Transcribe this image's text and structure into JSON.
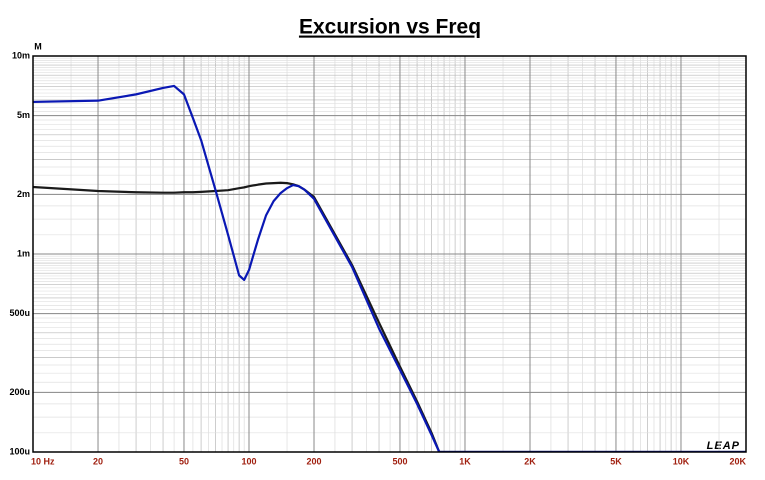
{
  "chart_data": {
    "type": "line",
    "title": "Excursion vs Freq",
    "y_unit": "M",
    "watermark": "LEAP",
    "xscale": "log",
    "yscale": "log",
    "grid": true,
    "xlim": [
      10,
      20000
    ],
    "ylim": [
      0.0001,
      0.01
    ],
    "xticks": [
      {
        "value": 10,
        "label": "10 Hz"
      },
      20,
      50,
      100,
      200,
      500,
      {
        "value": 1000,
        "label": "1K"
      },
      {
        "value": 2000,
        "label": "2K"
      },
      {
        "value": 5000,
        "label": "5K"
      },
      {
        "value": 10000,
        "label": "10K"
      },
      {
        "value": 20000,
        "label": "20K"
      }
    ],
    "yticks": [
      {
        "value": 0.0001,
        "label": "100u"
      },
      {
        "value": 0.0002,
        "label": "200u"
      },
      {
        "value": 0.0005,
        "label": "500u"
      },
      {
        "value": 0.001,
        "label": "1m"
      },
      {
        "value": 0.002,
        "label": "2m"
      },
      {
        "value": 0.005,
        "label": "5m"
      },
      {
        "value": 0.01,
        "label": "10m"
      }
    ],
    "x": [
      10,
      20,
      30,
      40,
      45,
      50,
      55,
      60,
      70,
      80,
      90,
      95,
      100,
      110,
      120,
      130,
      140,
      150,
      160,
      170,
      180,
      200,
      300,
      400,
      500,
      600,
      700,
      760,
      1000,
      20000
    ],
    "series": [
      {
        "color": "#1a1a1a",
        "values": [
          0.00218,
          0.00208,
          0.00205,
          0.00204,
          0.00204,
          0.00205,
          0.00205,
          0.00206,
          0.00208,
          0.0021,
          0.00215,
          0.00217,
          0.0022,
          0.00224,
          0.00227,
          0.00228,
          0.00229,
          0.00228,
          0.00225,
          0.0022,
          0.00212,
          0.00194,
          0.00088,
          0.00045,
          0.00027,
          0.00018,
          0.000125,
          0.0001,
          0.0001,
          0.0001
        ]
      },
      {
        "color": "#0a18b4",
        "values": [
          0.00586,
          0.00595,
          0.0064,
          0.0069,
          0.00706,
          0.0064,
          0.00486,
          0.00376,
          0.0021,
          0.00125,
          0.00078,
          0.00074,
          0.00083,
          0.00118,
          0.00157,
          0.00185,
          0.00203,
          0.00215,
          0.00223,
          0.0022,
          0.00212,
          0.0019,
          0.00086,
          0.00042,
          0.00026,
          0.000175,
          0.000122,
          0.0001,
          0.0001,
          0.0001
        ]
      }
    ]
  }
}
